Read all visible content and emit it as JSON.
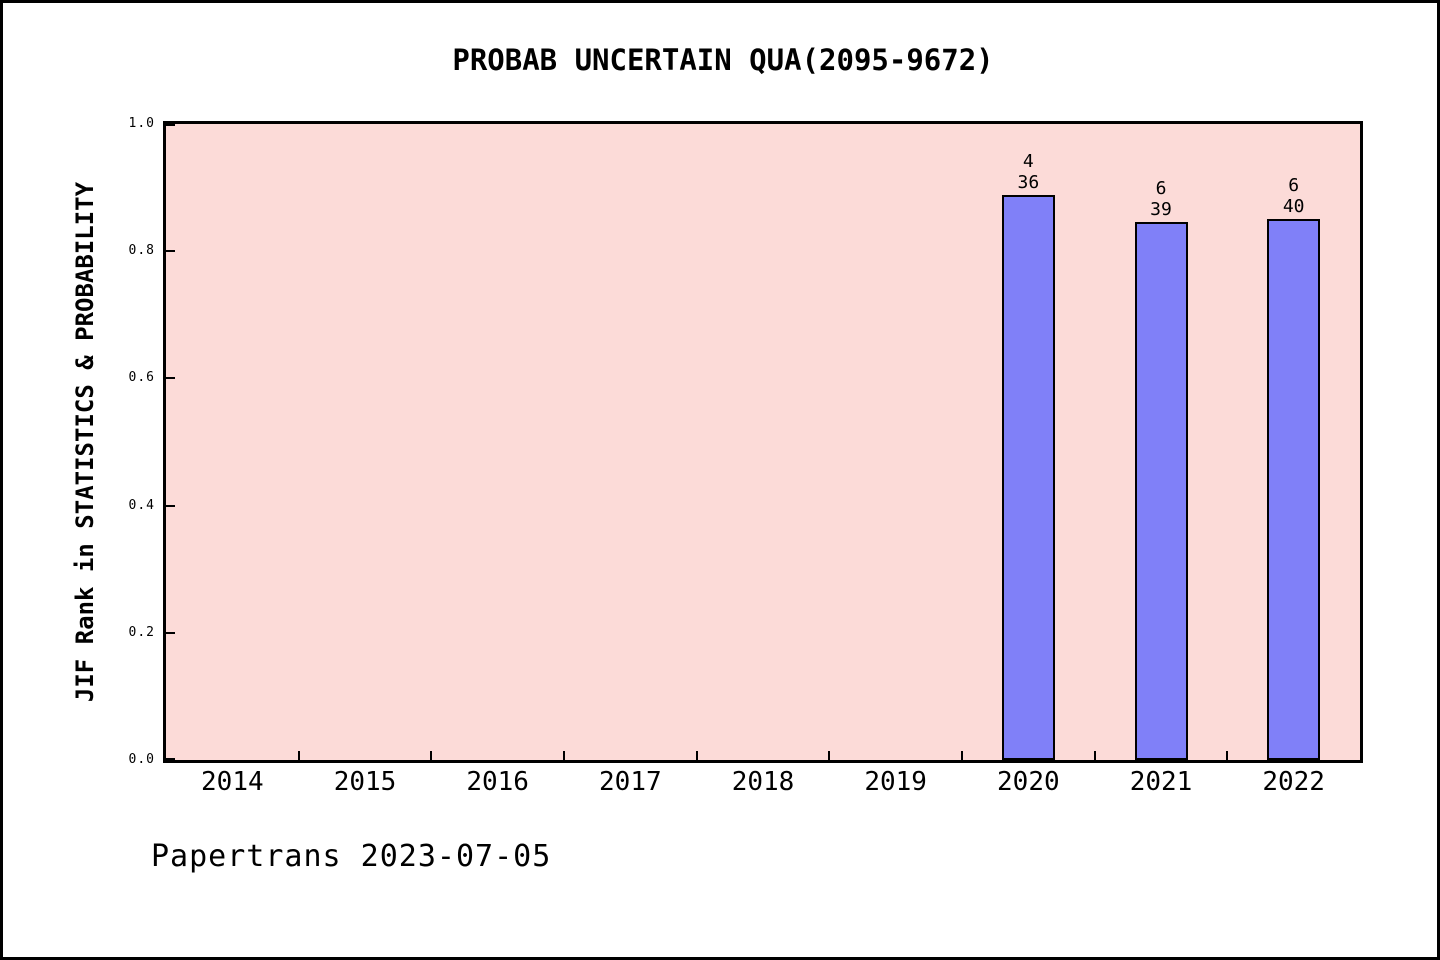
{
  "page": {
    "title": "PROBAB UNCERTAIN QUA(2095-9672)"
  },
  "footer": {
    "text": "Papertrans 2023-07-05"
  },
  "chart_data": {
    "type": "bar",
    "title": "PROBAB UNCERTAIN QUA(2095-9672)",
    "xlabel": "",
    "ylabel": "JIF Rank in STATISTICS & PROBABILITY",
    "categories": [
      "2014",
      "2015",
      "2016",
      "2017",
      "2018",
      "2019",
      "2020",
      "2021",
      "2022"
    ],
    "values": [
      null,
      null,
      null,
      null,
      null,
      null,
      0.889,
      0.846,
      0.85
    ],
    "bar_annotations": [
      null,
      null,
      null,
      null,
      null,
      null,
      {
        "rank": "4",
        "total": "36"
      },
      {
        "rank": "6",
        "total": "39"
      },
      {
        "rank": "6",
        "total": "40"
      }
    ],
    "ylim": [
      0.0,
      1.0
    ],
    "yticks": [
      "0.0",
      "0.2",
      "0.4",
      "0.6",
      "0.8",
      "1.0"
    ],
    "grid": false,
    "legend": "none",
    "colors": {
      "bar_fill": "#8080f8",
      "bar_edge": "#000000",
      "plot_background": "#fcdbd8",
      "page_background": "#ffffff",
      "text": "#000000"
    }
  }
}
